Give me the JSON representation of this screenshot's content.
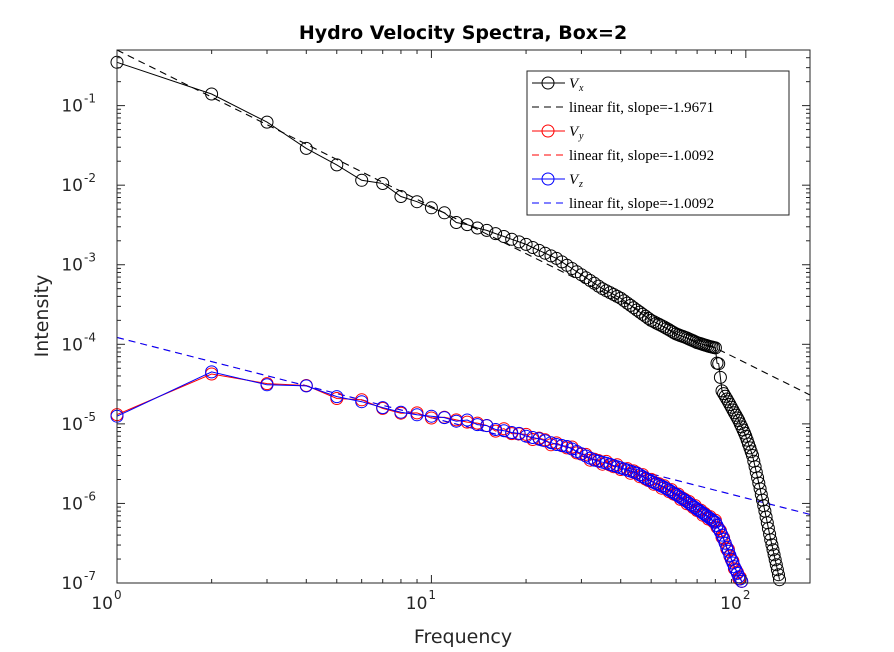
{
  "chart_data": {
    "type": "line",
    "title": "Hydro Velocity Spectra, Box=2",
    "xlabel": "Frequency",
    "ylabel": "Intensity",
    "xscale": "log",
    "yscale": "log",
    "xlim": [
      1,
      160
    ],
    "ylim": [
      1e-07,
      0.5
    ],
    "xticks": [
      {
        "base": "10",
        "exp": "0"
      },
      {
        "base": "10",
        "exp": "1"
      },
      {
        "base": "10",
        "exp": "2"
      }
    ],
    "yticks": [
      {
        "base": "10",
        "exp": "-7"
      },
      {
        "base": "10",
        "exp": "-6"
      },
      {
        "base": "10",
        "exp": "-5"
      },
      {
        "base": "10",
        "exp": "-4"
      },
      {
        "base": "10",
        "exp": "-3"
      },
      {
        "base": "10",
        "exp": "-2"
      },
      {
        "base": "10",
        "exp": "-1"
      }
    ],
    "grid": false,
    "legend_position": "top-right",
    "series": [
      {
        "name": "V_x",
        "color": "#000000",
        "marker": "circle",
        "vx_anchors": [
          [
            1,
            0.35
          ],
          [
            2,
            0.14
          ],
          [
            3,
            0.062
          ],
          [
            4,
            0.029
          ],
          [
            5,
            0.018
          ],
          [
            6,
            0.0115
          ],
          [
            7,
            0.0105
          ],
          [
            8,
            0.0072
          ],
          [
            9,
            0.0062
          ],
          [
            10,
            0.0052
          ],
          [
            11,
            0.0045
          ],
          [
            12,
            0.0034
          ],
          [
            13,
            0.0032
          ],
          [
            14,
            0.0029
          ],
          [
            15,
            0.0027
          ],
          [
            20,
            0.0018
          ],
          [
            25,
            0.0012
          ],
          [
            30,
            0.00075
          ],
          [
            35,
            0.0005
          ],
          [
            40,
            0.00038
          ],
          [
            45,
            0.00027
          ],
          [
            50,
            0.0002
          ],
          [
            55,
            0.000165
          ],
          [
            60,
            0.000135
          ],
          [
            65,
            0.00012
          ],
          [
            70,
            0.000105
          ],
          [
            76,
            9.5e-05
          ],
          [
            80,
            9e-05
          ],
          [
            81,
            5.8e-05
          ],
          [
            82,
            5.7e-05
          ],
          [
            84,
            2.6e-05
          ],
          [
            88,
            1.9e-05
          ],
          [
            95,
            1.1e-05
          ],
          [
            100,
            7e-06
          ],
          [
            105,
            4e-06
          ],
          [
            110,
            1.8e-06
          ],
          [
            115,
            8e-07
          ],
          [
            120,
            3.5e-07
          ],
          [
            125,
            1.7e-07
          ],
          [
            128,
            1.1e-07
          ]
        ]
      },
      {
        "name": "linear fit, slope=-1.9671",
        "color": "#000000",
        "style": "dashed",
        "intercept": 0.5,
        "slope": -1.9671
      },
      {
        "name": "V_y",
        "color": "#ff0000",
        "marker": "circle"
      },
      {
        "name": "linear fit, slope=-1.0092",
        "color": "#ff0000",
        "style": "dashed",
        "intercept": 0.000122,
        "slope": -1.0092
      },
      {
        "name": "V_z",
        "color": "#0000ff",
        "marker": "circle"
      },
      {
        "name": "linear fit, slope=-1.0092",
        "color": "#0000ff",
        "style": "dashed",
        "intercept": 0.000122,
        "slope": -1.0092
      }
    ],
    "vyz_anchors": [
      [
        1,
        1.25e-05
      ],
      [
        2,
        4.5e-05
      ],
      [
        3,
        3.1e-05
      ],
      [
        4,
        3e-05
      ],
      [
        5,
        2.2e-05
      ],
      [
        6,
        1.9e-05
      ],
      [
        7,
        1.6e-05
      ],
      [
        8,
        1.4e-05
      ],
      [
        9,
        1.3e-05
      ],
      [
        10,
        1.25e-05
      ],
      [
        11,
        1.2e-05
      ],
      [
        12,
        1.08e-05
      ],
      [
        13,
        1.12e-05
      ],
      [
        14,
        9.8e-06
      ],
      [
        15,
        9.5e-06
      ],
      [
        16,
        8.5e-06
      ],
      [
        17,
        8.2e-06
      ],
      [
        18,
        7.8e-06
      ],
      [
        19,
        7.6e-06
      ],
      [
        20,
        7e-06
      ],
      [
        22,
        6.5e-06
      ],
      [
        25,
        5.5e-06
      ],
      [
        27,
        5.2e-06
      ],
      [
        30,
        4.2e-06
      ],
      [
        33,
        3.5e-06
      ],
      [
        36,
        3.2e-06
      ],
      [
        40,
        2.8e-06
      ],
      [
        45,
        2.4e-06
      ],
      [
        50,
        1.9e-06
      ],
      [
        55,
        1.6e-06
      ],
      [
        60,
        1.3e-06
      ],
      [
        65,
        1.05e-06
      ],
      [
        70,
        8.5e-07
      ],
      [
        75,
        7e-07
      ],
      [
        80,
        5.8e-07
      ],
      [
        84,
        4e-07
      ],
      [
        88,
        2.5e-07
      ],
      [
        92,
        1.6e-07
      ],
      [
        95,
        1.2e-07
      ],
      [
        97,
        1.05e-07
      ]
    ],
    "legend": [
      {
        "sym": "V",
        "sub": "x",
        "color": "#000000"
      },
      {
        "label": "linear fit, slope=-1.9671",
        "color": "#000000"
      },
      {
        "sym": "V",
        "sub": "y",
        "color": "#ff0000"
      },
      {
        "label": "linear fit, slope=-1.0092",
        "color": "#ff0000"
      },
      {
        "sym": "V",
        "sub": "z",
        "color": "#0000ff"
      },
      {
        "label": "linear fit, slope=-1.0092",
        "color": "#0000ff"
      }
    ]
  }
}
